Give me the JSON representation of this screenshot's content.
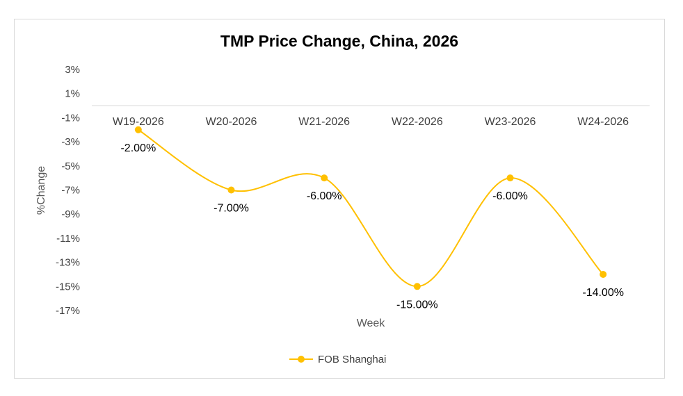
{
  "chart_data": {
    "type": "line",
    "title": "TMP Price Change, China, 2026",
    "xlabel": "Week",
    "ylabel": "%Change",
    "categories": [
      "W19-2026",
      "W20-2026",
      "W21-2026",
      "W22-2026",
      "W23-2026",
      "W24-2026"
    ],
    "y_ticks": [
      "3%",
      "1%",
      "-1%",
      "-3%",
      "-5%",
      "-7%",
      "-9%",
      "-11%",
      "-13%",
      "-15%",
      "-17%"
    ],
    "ylim": [
      -17,
      3
    ],
    "x_axis_at": 0,
    "smooth": true,
    "grid": false,
    "legend_position": "bottom",
    "series": [
      {
        "name": "FOB Shanghai",
        "color": "#ffc000",
        "values": [
          -2.0,
          -7.0,
          -6.0,
          -15.0,
          -6.0,
          -14.0
        ],
        "labels": [
          "-2.00%",
          "-7.00%",
          "-6.00%",
          "-15.00%",
          "-6.00%",
          "-14.00%"
        ]
      }
    ]
  }
}
